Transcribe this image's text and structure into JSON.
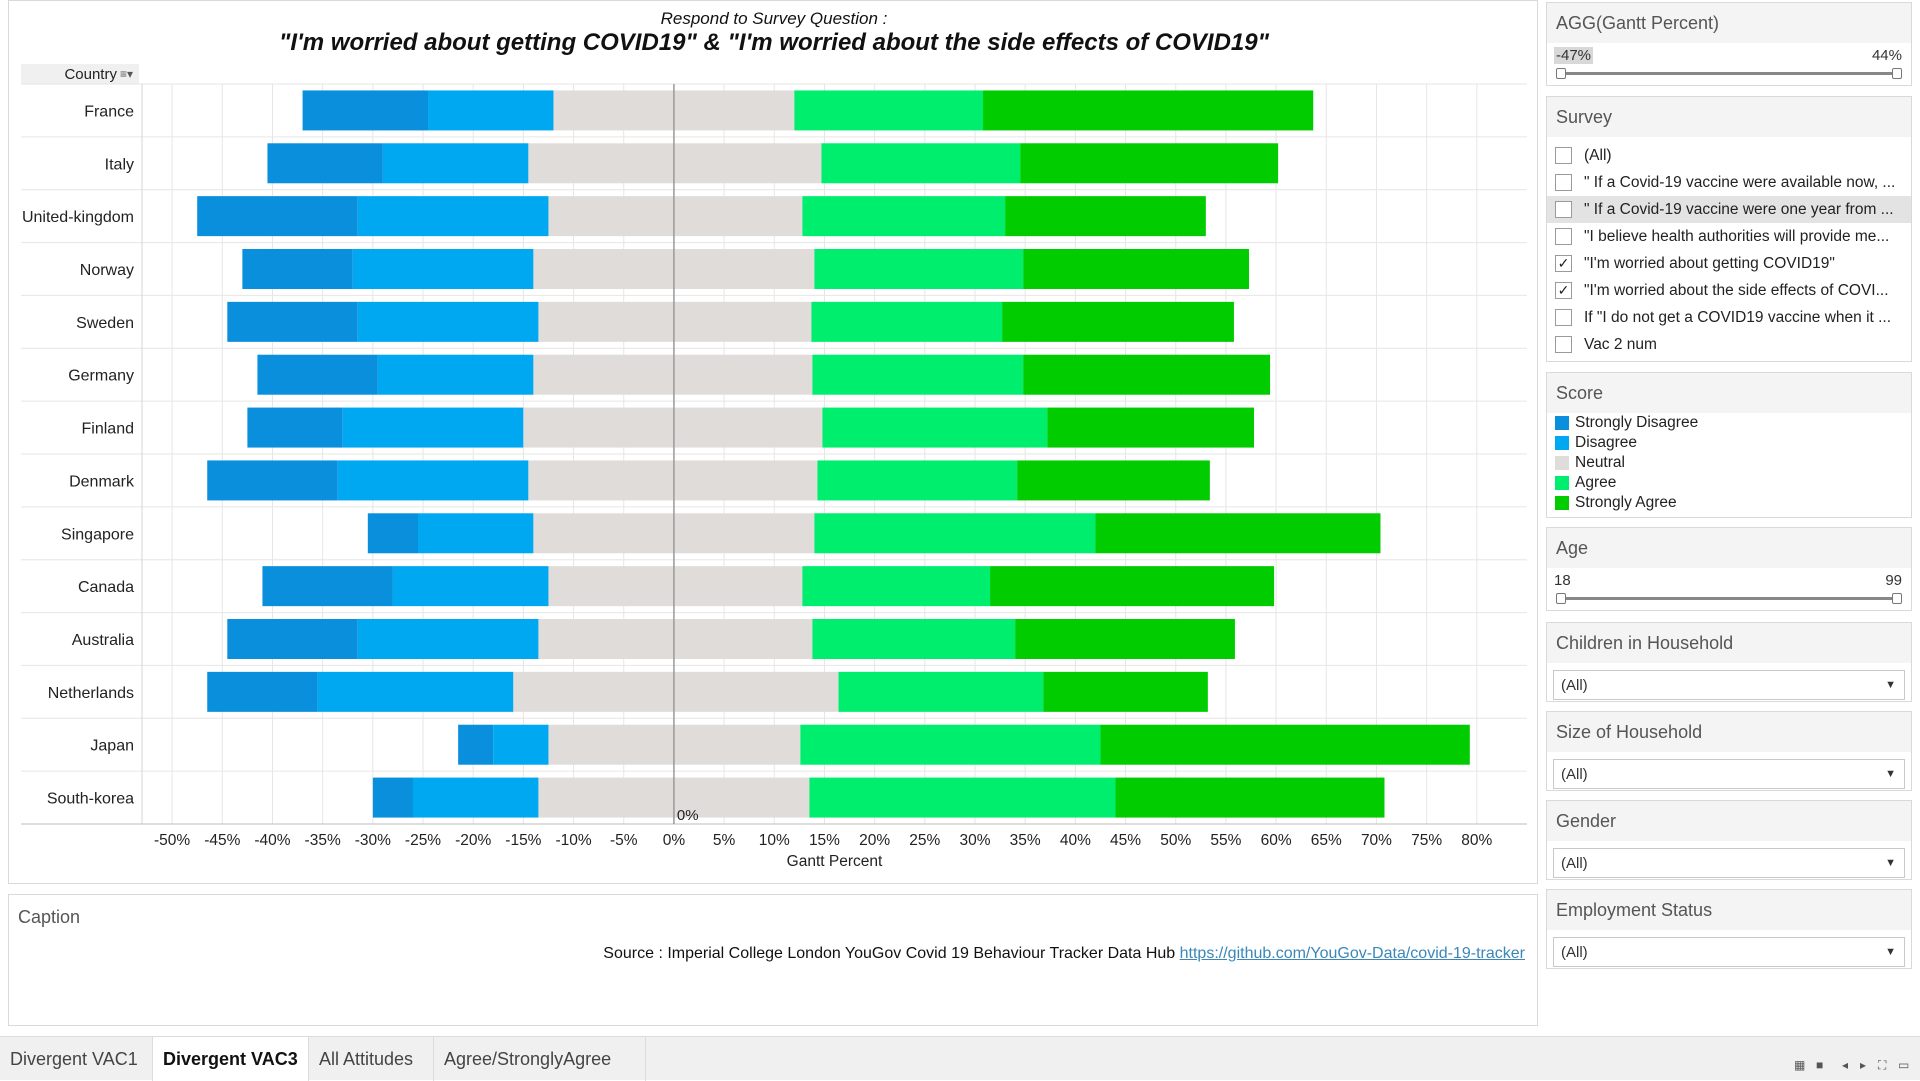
{
  "chart": {
    "title_line1": "Respond to Survey Question :",
    "title_line2": "\"I'm worried about getting COVID19\" & \"I'm worried about the side effects of COVID19\"",
    "row_header": "Country",
    "xlabel": "Gantt Percent",
    "zero_label": "0%"
  },
  "chart_data": {
    "type": "bar",
    "orientation": "horizontal-diverging-stacked",
    "categories": [
      "France",
      "Italy",
      "United-kingdom",
      "Norway",
      "Sweden",
      "Germany",
      "Finland",
      "Denmark",
      "Singapore",
      "Canada",
      "Australia",
      "Netherlands",
      "Japan",
      "South-korea"
    ],
    "series": [
      {
        "name": "Strongly Disagree",
        "start": [
          -37,
          -40.5,
          -47.5,
          -43,
          -44.5,
          -41.5,
          -42.5,
          -46.5,
          -30.5,
          -41,
          -44.5,
          -46.5,
          -21.5,
          -30
        ],
        "end": [
          -24.5,
          -29,
          -31.5,
          -32,
          -31.5,
          -29.5,
          -33,
          -33.5,
          -25.5,
          -28,
          -31.5,
          -35.5,
          -18,
          -26
        ]
      },
      {
        "name": "Disagree",
        "start": [
          -24.5,
          -29,
          -31.5,
          -32,
          -31.5,
          -29.5,
          -33,
          -33.5,
          -25.5,
          -28,
          -31.5,
          -35.5,
          -18,
          -26
        ],
        "end": [
          -12,
          -14.5,
          -12.5,
          -14,
          -13.5,
          -14,
          -15,
          -14.5,
          -14,
          -12.5,
          -13.5,
          -16,
          -12.5,
          -13.5
        ]
      },
      {
        "name": "Neutral",
        "start": [
          -12,
          -14.5,
          -12.5,
          -14,
          -13.5,
          -14,
          -15,
          -14.5,
          -14,
          -12.5,
          -13.5,
          -16,
          -12.5,
          -13.5
        ],
        "end": [
          12,
          14.7,
          12.8,
          14,
          13.7,
          13.8,
          14.8,
          14.3,
          14,
          12.8,
          13.8,
          16.4,
          12.6,
          13.5
        ]
      },
      {
        "name": "Agree",
        "start": [
          12,
          14.7,
          12.8,
          14,
          13.7,
          13.8,
          14.8,
          14.3,
          14,
          12.8,
          13.8,
          16.4,
          12.6,
          13.5
        ],
        "end": [
          30.8,
          34.5,
          33,
          34.8,
          32.7,
          34.8,
          37.2,
          34.2,
          42,
          31.5,
          34,
          36.8,
          42.5,
          44
        ]
      },
      {
        "name": "Strongly Agree",
        "start": [
          30.8,
          34.5,
          33,
          34.8,
          32.7,
          34.8,
          37.2,
          34.2,
          42,
          31.5,
          34,
          36.8,
          42.5,
          44
        ],
        "end": [
          63.7,
          60.2,
          53,
          57.3,
          55.8,
          59.4,
          57.8,
          53.4,
          70.4,
          59.8,
          55.9,
          53.2,
          79.3,
          70.8
        ]
      }
    ],
    "colors": [
      "#0a8fdc",
      "#00a8f2",
      "#e0dcda",
      "#00ee6e",
      "#00cc00"
    ],
    "xlim": [
      -53,
      85
    ],
    "xticks": [
      -50,
      -45,
      -40,
      -35,
      -30,
      -25,
      -20,
      -15,
      -10,
      -5,
      0,
      5,
      10,
      15,
      20,
      25,
      30,
      35,
      40,
      45,
      50,
      55,
      60,
      65,
      70,
      75,
      80
    ],
    "xtick_labels": [
      "-50%",
      "-45%",
      "-40%",
      "-35%",
      "-30%",
      "-25%",
      "-20%",
      "-15%",
      "-10%",
      "-5%",
      "0%",
      "5%",
      "10%",
      "15%",
      "20%",
      "25%",
      "30%",
      "35%",
      "40%",
      "45%",
      "50%",
      "55%",
      "60%",
      "65%",
      "70%",
      "75%",
      "80%"
    ],
    "grid": true
  },
  "caption": {
    "title": "Caption",
    "source_text": "Source : Imperial College London YouGov Covid 19 Behaviour Tracker Data Hub ",
    "link_text": "https://github.com/YouGov-Data/covid-19-tracker"
  },
  "filters": {
    "gantt": {
      "title": "AGG(Gantt Percent)",
      "min_label": "-47%",
      "max_label": "44%"
    },
    "survey": {
      "title": "Survey",
      "options": [
        {
          "label": "(All)",
          "checked": false
        },
        {
          "label": "\" If a Covid-19 vaccine were available now, ...",
          "checked": false
        },
        {
          "label": "\" If a Covid-19 vaccine were one year from ...",
          "checked": false
        },
        {
          "label": "\"I believe health authorities will provide me...",
          "checked": false
        },
        {
          "label": "\"I'm worried about getting COVID19\"",
          "checked": true
        },
        {
          "label": "\"I'm worried about the side effects of COVI...",
          "checked": true
        },
        {
          "label": "If \"I do not get a COVID19 vaccine when it ...",
          "checked": false
        },
        {
          "label": "Vac 2 num",
          "checked": false
        }
      ]
    },
    "score": {
      "title": "Score",
      "items": [
        {
          "label": "Strongly Disagree",
          "color": "#0a8fdc"
        },
        {
          "label": "Disagree",
          "color": "#00a8f2"
        },
        {
          "label": "Neutral",
          "color": "#e0dcda"
        },
        {
          "label": "Agree",
          "color": "#00ee6e"
        },
        {
          "label": "Strongly Agree",
          "color": "#00cc00"
        }
      ]
    },
    "age": {
      "title": "Age",
      "min_label": "18",
      "max_label": "99"
    },
    "children": {
      "title": "Children in Household",
      "value": "(All)"
    },
    "size": {
      "title": "Size of Household",
      "value": "(All)"
    },
    "gender": {
      "title": "Gender",
      "value": "(All)"
    },
    "employment": {
      "title": "Employment Status",
      "value": "(All)"
    }
  },
  "tabs": [
    {
      "label": "Divergent VAC1",
      "active": false
    },
    {
      "label": "Divergent VAC3",
      "active": true
    },
    {
      "label": "All Attitudes",
      "active": false
    },
    {
      "label": "Agree/StronglyAgree",
      "active": false
    }
  ]
}
